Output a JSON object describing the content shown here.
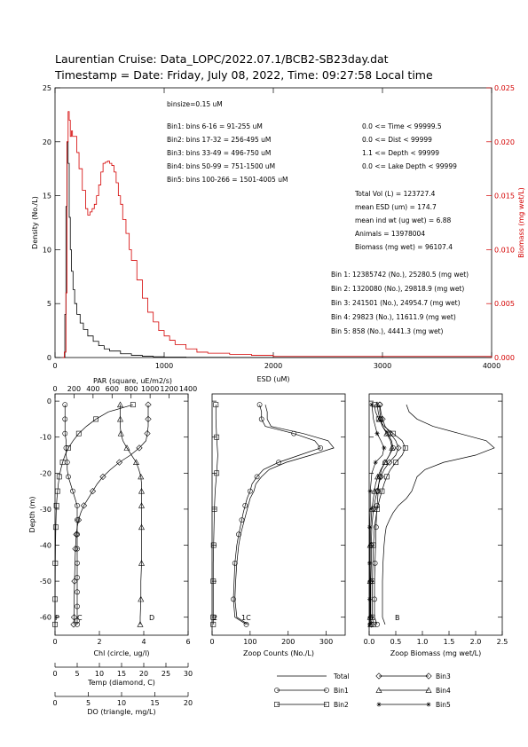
{
  "header": {
    "line1": "Laurentian Cruise: Data_LOPC/2022.07.1/BCB2-SB23day.dat",
    "line2": "Timestamp = Date: Friday, July 08, 2022, Time: 09:27:58 Local time"
  },
  "colors": {
    "black": "#000000",
    "red": "#d40000"
  },
  "top_text": {
    "binsize": "binsize=0.15 uM",
    "bins": [
      "Bin1: bins 6-16 = 91-255 uM",
      "Bin2: bins 17-32 = 256-495 uM",
      "Bin3: bins 33-49 = 496-750 uM",
      "Bin4: bins 50-99 = 751-1500 uM",
      "Bin5: bins 100-266 = 1501-4005 uM"
    ],
    "filters": [
      "0.0 <= Time < 99999.5",
      "0.0 <= Dist < 99999",
      "1.1 <= Depth < 99999",
      "0.0 <= Lake Depth < 99999"
    ],
    "totals": [
      "Total Vol (L) = 123727.4",
      "mean ESD (um) = 174.7",
      "mean ind wt (ug wet) = 6.88",
      "Animals = 13978004",
      "Biomass (mg wet) = 96107.4"
    ],
    "bin_totals": [
      "Bin 1: 12385742 (No.), 25280.5 (mg wet)",
      "Bin 2: 1320080 (No.), 29818.9 (mg wet)",
      "Bin 3: 241501 (No.), 24954.7 (mg wet)",
      "Bin 4: 29823 (No.), 11611.9 (mg wet)",
      "Bin 5: 858 (No.), 4441.3 (mg wet)"
    ]
  },
  "legend": {
    "total": "Total",
    "bin1": "Bin1",
    "bin2": "Bin2",
    "bin3": "Bin3",
    "bin4": "Bin4",
    "bin5": "Bin5"
  },
  "chart_data": [
    {
      "type": "line",
      "xlabel": "ESD (uM)",
      "ylabel": "Density (No./L)",
      "y2label": "Biomass (mg wet/L)",
      "xlim": [
        0,
        4000
      ],
      "ylim": [
        0,
        25
      ],
      "y2lim": [
        0,
        0.025
      ],
      "xticks": [
        "0",
        "1000",
        "2000",
        "3000",
        "4000"
      ],
      "yticks": [
        "0",
        "5",
        "10",
        "15",
        "20",
        "25"
      ],
      "y2ticks": [
        "0.000",
        "0.005",
        "0.010",
        "0.015",
        "0.020",
        "0.025"
      ],
      "series": [
        {
          "axis": "left",
          "color": "#000000",
          "x": [
            80,
            90,
            100,
            110,
            120,
            130,
            140,
            150,
            165,
            180,
            200,
            230,
            260,
            300,
            350,
            400,
            450,
            500,
            600,
            700,
            800,
            900,
            1000,
            1200,
            1600,
            2000,
            3000,
            4000
          ],
          "y": [
            0,
            4,
            14,
            20,
            18,
            13,
            10,
            8,
            6.3,
            5,
            4,
            3.2,
            2.6,
            2,
            1.5,
            1.1,
            0.8,
            0.6,
            0.35,
            0.2,
            0.12,
            0.07,
            0.04,
            0.02,
            0.01,
            0,
            0,
            0
          ]
        },
        {
          "axis": "right",
          "color": "#d40000",
          "x": [
            70,
            85,
            100,
            110,
            120,
            130,
            140,
            150,
            160,
            180,
            200,
            220,
            250,
            280,
            300,
            320,
            340,
            360,
            380,
            400,
            420,
            440,
            460,
            480,
            500,
            520,
            540,
            560,
            580,
            600,
            620,
            650,
            680,
            700,
            750,
            800,
            850,
            900,
            950,
            1000,
            1050,
            1100,
            1200,
            1300,
            1400,
            1600,
            1800,
            2000,
            2500,
            3000,
            3500,
            4000
          ],
          "y": [
            0,
            0.0005,
            0.006,
            0.02,
            0.0228,
            0.022,
            0.0205,
            0.021,
            0.0205,
            0.0205,
            0.019,
            0.0175,
            0.0155,
            0.0138,
            0.0132,
            0.0135,
            0.0138,
            0.0142,
            0.015,
            0.016,
            0.0172,
            0.018,
            0.0181,
            0.0182,
            0.018,
            0.0178,
            0.0172,
            0.0162,
            0.015,
            0.0142,
            0.0128,
            0.0115,
            0.01,
            0.009,
            0.0072,
            0.0055,
            0.0042,
            0.0033,
            0.0025,
            0.002,
            0.0016,
            0.0012,
            0.0008,
            0.0005,
            0.0004,
            0.0003,
            0.0002,
            0.0001,
            0.0001,
            0.0001,
            0.0001,
            0
          ]
        }
      ]
    },
    {
      "type": "line",
      "xlabel": "Chl (circle, ug/l)",
      "top_axis_label": "PAR (square, uE/m2/s)",
      "ylabel": "Depth (m)",
      "xlim": [
        0,
        6
      ],
      "ylim": [
        -65,
        2
      ],
      "xticks": [
        "0",
        "2",
        "4",
        "6"
      ],
      "top_ticks": [
        "0",
        "200",
        "400",
        "600",
        "800",
        "1000",
        "1200",
        "1400"
      ],
      "yticks": [
        "-60",
        "-50",
        "-40",
        "-30",
        "-20",
        "-10",
        "0"
      ],
      "extra_axes": [
        {
          "label": "Temp (diamond, C)",
          "ticks": [
            "0",
            "5",
            "10",
            "15",
            "20",
            "25",
            "30"
          ]
        },
        {
          "label": "DO (triangle, mg/L)",
          "ticks": [
            "0",
            "5",
            "10",
            "15",
            "20"
          ]
        }
      ],
      "curve_labels": [
        "P",
        "C",
        "D"
      ],
      "series": [
        {
          "name": "Chl",
          "marker": "circle",
          "depth": [
            -1,
            -3,
            -5,
            -7,
            -9,
            -11,
            -13,
            -15,
            -17,
            -19,
            -21,
            -23,
            -25,
            -27,
            -29,
            -31,
            -33,
            -35,
            -37,
            -39,
            -41,
            -43,
            -45,
            -47,
            -49,
            -51,
            -53,
            -55,
            -57,
            -59,
            -61,
            -62
          ],
          "x": [
            0.45,
            0.45,
            0.45,
            0.45,
            0.45,
            0.5,
            0.5,
            0.5,
            0.55,
            0.55,
            0.6,
            0.7,
            0.8,
            0.9,
            1.0,
            1.0,
            1.0,
            1.0,
            1.0,
            1.0,
            1.0,
            1.0,
            1.0,
            1.0,
            1.0,
            1.0,
            1.0,
            1.0,
            1.0,
            1.0,
            1.0,
            1.0
          ]
        },
        {
          "name": "PAR",
          "marker": "square",
          "depth": [
            -1,
            -3,
            -5,
            -7,
            -9,
            -11,
            -13,
            -15,
            -17,
            -19,
            -21,
            -23,
            -25,
            -27,
            -29,
            -31,
            -35,
            -40,
            -45,
            -50,
            -55,
            -60,
            -62
          ],
          "x": [
            820,
            560,
            430,
            330,
            250,
            190,
            140,
            105,
            80,
            60,
            45,
            35,
            27,
            20,
            15,
            12,
            8,
            5,
            3,
            2,
            1,
            0.5,
            0.3
          ]
        },
        {
          "name": "Temp",
          "marker": "diamond",
          "depth": [
            -1,
            -3,
            -5,
            -7,
            -9,
            -11,
            -13,
            -15,
            -17,
            -19,
            -21,
            -23,
            -25,
            -27,
            -29,
            -31,
            -33,
            -35,
            -37,
            -39,
            -41,
            -45,
            -50,
            -55,
            -60,
            -62
          ],
          "x": [
            21,
            21,
            21,
            21,
            20.8,
            20.5,
            19,
            17,
            14.5,
            12.5,
            10.8,
            9.5,
            8.5,
            7.5,
            6.5,
            5.8,
            5.3,
            5,
            4.8,
            4.7,
            4.6,
            4.5,
            4.4,
            4.3,
            4.3,
            4.2
          ]
        },
        {
          "name": "DO",
          "marker": "triangle",
          "depth": [
            -1,
            -3,
            -5,
            -7,
            -9,
            -11,
            -13,
            -15,
            -17,
            -19,
            -21,
            -23,
            -25,
            -27,
            -29,
            -31,
            -35,
            -40,
            -45,
            -50,
            -55,
            -60,
            -62
          ],
          "x": [
            9.8,
            9.8,
            9.8,
            9.8,
            9.9,
            10.2,
            10.8,
            11.5,
            12.2,
            12.6,
            12.9,
            13.0,
            13.0,
            13.0,
            13.0,
            13.0,
            13.0,
            13.0,
            13.0,
            12.9,
            12.9,
            12.8,
            12.8
          ]
        }
      ]
    },
    {
      "type": "line",
      "xlabel": "Zoop Counts (No./L)",
      "ylabel": "",
      "xlim": [
        0,
        350
      ],
      "ylim": [
        -65,
        2
      ],
      "xticks": [
        "0",
        "100",
        "200",
        "300"
      ],
      "yticks": [
        "-60",
        "-50",
        "-40",
        "-30",
        "-20",
        "-10",
        "0"
      ],
      "curve_labels": [
        "2",
        "1C"
      ],
      "series": [
        {
          "name": "Total",
          "depth": [
            -1,
            -3,
            -5,
            -7,
            -9,
            -11,
            -13,
            -15,
            -17,
            -19,
            -21,
            -23,
            -25,
            -27,
            -29,
            -31,
            -33,
            -35,
            -37,
            -40,
            -45,
            -50,
            -55,
            -60,
            -62
          ],
          "x": [
            140,
            145,
            145,
            155,
            240,
            305,
            320,
            260,
            195,
            150,
            130,
            115,
            110,
            100,
            95,
            90,
            85,
            80,
            75,
            70,
            65,
            62,
            60,
            65,
            95
          ]
        },
        {
          "name": "Bin1",
          "marker": "circle",
          "depth": [
            -1,
            -3,
            -5,
            -7,
            -9,
            -11,
            -13,
            -15,
            -17,
            -19,
            -21,
            -23,
            -25,
            -27,
            -29,
            -31,
            -33,
            -35,
            -37,
            -40,
            -45,
            -50,
            -55,
            -60,
            -62
          ],
          "x": [
            125,
            130,
            130,
            140,
            215,
            270,
            285,
            230,
            175,
            135,
            118,
            105,
            100,
            92,
            87,
            82,
            78,
            74,
            70,
            65,
            60,
            58,
            56,
            60,
            90
          ]
        },
        {
          "name": "Bin2",
          "marker": "square",
          "depth": [
            -1,
            -5,
            -10,
            -15,
            -20,
            -25,
            -30,
            -35,
            -40,
            -45,
            -50,
            -55,
            -60,
            -62
          ],
          "x": [
            10,
            10,
            12,
            15,
            12,
            8,
            6,
            5,
            4,
            3,
            3,
            3,
            3,
            3
          ]
        }
      ]
    },
    {
      "type": "line",
      "xlabel": "Zoop Biomass (mg wet/L)",
      "ylabel": "",
      "xlim": [
        0,
        2.5
      ],
      "ylim": [
        -65,
        2
      ],
      "xticks": [
        "0.0",
        "0.5",
        "1.0",
        "1.5",
        "2.0",
        "2.5"
      ],
      "yticks": [
        "-60",
        "-50",
        "-40",
        "-30",
        "-20",
        "-10",
        "0"
      ],
      "curve_labels": [
        "B"
      ],
      "series": [
        {
          "name": "Total",
          "depth": [
            -1,
            -3,
            -5,
            -7,
            -9,
            -11,
            -13,
            -15,
            -17,
            -19,
            -21,
            -23,
            -25,
            -27,
            -29,
            -31,
            -33,
            -35,
            -37,
            -40,
            -45,
            -50,
            -55,
            -60,
            -62
          ],
          "x": [
            0.7,
            0.75,
            0.9,
            1.2,
            1.7,
            2.2,
            2.35,
            2.0,
            1.4,
            1.05,
            0.9,
            0.85,
            0.8,
            0.7,
            0.55,
            0.45,
            0.38,
            0.32,
            0.3,
            0.28,
            0.26,
            0.25,
            0.25,
            0.25,
            0.3
          ]
        },
        {
          "name": "Bin1",
          "marker": "circle",
          "depth": [
            -1,
            -3,
            -5,
            -7,
            -9,
            -11,
            -13,
            -15,
            -17,
            -19,
            -21,
            -23,
            -25,
            -27,
            -29,
            -31,
            -35,
            -40,
            -45,
            -50,
            -55,
            -60,
            -62
          ],
          "x": [
            0.2,
            0.2,
            0.22,
            0.25,
            0.35,
            0.42,
            0.45,
            0.38,
            0.3,
            0.23,
            0.2,
            0.18,
            0.17,
            0.16,
            0.15,
            0.14,
            0.13,
            0.12,
            0.11,
            0.1,
            0.1,
            0.1,
            0.15
          ]
        },
        {
          "name": "Bin2",
          "marker": "square",
          "depth": [
            -1,
            -3,
            -5,
            -7,
            -9,
            -11,
            -13,
            -15,
            -17,
            -19,
            -21,
            -23,
            -25,
            -27,
            -30,
            -35,
            -40,
            -45,
            -50,
            -55,
            -60,
            -62
          ],
          "x": [
            0.1,
            0.12,
            0.18,
            0.28,
            0.45,
            0.62,
            0.68,
            0.62,
            0.5,
            0.4,
            0.33,
            0.28,
            0.24,
            0.2,
            0.15,
            0.1,
            0.08,
            0.07,
            0.06,
            0.06,
            0.06,
            0.08
          ]
        },
        {
          "name": "Bin3",
          "marker": "diamond",
          "depth": [
            -1,
            -3,
            -5,
            -7,
            -9,
            -11,
            -13,
            -15,
            -17,
            -19,
            -21,
            -23,
            -25,
            -27,
            -30,
            -35,
            -40,
            -45,
            -50,
            -55,
            -60,
            -62
          ],
          "x": [
            0.2,
            0.22,
            0.25,
            0.3,
            0.4,
            0.5,
            0.55,
            0.5,
            0.38,
            0.28,
            0.22,
            0.18,
            0.15,
            0.12,
            0.08,
            0.05,
            0.04,
            0.04,
            0.03,
            0.03,
            0.03,
            0.04
          ]
        },
        {
          "name": "Bin4",
          "marker": "triangle",
          "depth": [
            -1,
            -3,
            -5,
            -7,
            -9,
            -11,
            -13,
            -15,
            -17,
            -19,
            -21,
            -23,
            -25,
            -27,
            -30,
            -35,
            -40,
            -45,
            -50,
            -55,
            -60,
            -62
          ],
          "x": [
            0.15,
            0.17,
            0.2,
            0.25,
            0.33,
            0.4,
            0.43,
            0.38,
            0.3,
            0.22,
            0.16,
            0.12,
            0.1,
            0.08,
            0.05,
            0.03,
            0.02,
            0.02,
            0.02,
            0.02,
            0.02,
            0.03
          ]
        },
        {
          "name": "Bin5",
          "marker": "star",
          "depth": [
            -1,
            -5,
            -9,
            -11,
            -13,
            -15,
            -17,
            -20,
            -25,
            -30,
            -35,
            -40,
            -45,
            -50,
            -55,
            -60,
            -62
          ],
          "x": [
            0.05,
            0.08,
            0.15,
            0.22,
            0.28,
            0.25,
            0.12,
            0.05,
            0.02,
            0.02,
            0.01,
            0.01,
            0.01,
            0.01,
            0.01,
            0.01,
            0.01
          ]
        }
      ]
    }
  ]
}
